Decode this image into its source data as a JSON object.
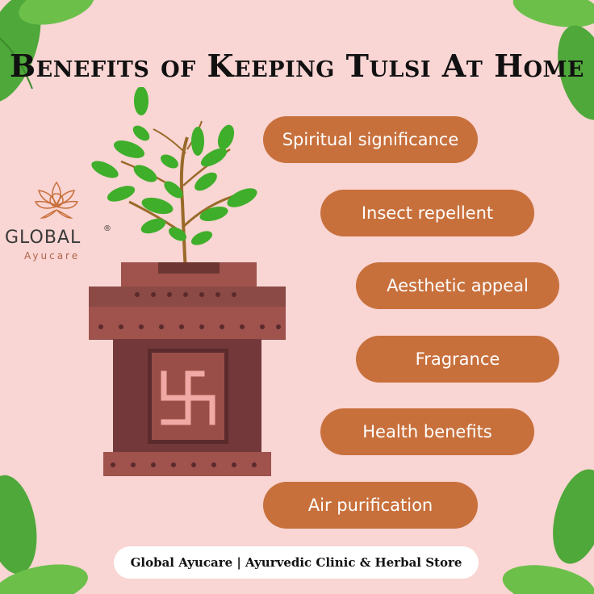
{
  "title": "Benefits of Keeping Tulsi At Home",
  "logo": {
    "name": "GLOBAL",
    "registered": "®",
    "tagline": "Ayucare"
  },
  "benefits": [
    "Spiritual significance",
    "Insect repellent",
    "Aesthetic appeal",
    "Fragrance",
    "Health benefits",
    "Air purification"
  ],
  "footer": "Global Ayucare | Ayurvedic Clinic & Herbal Store",
  "colors": {
    "background": "#f9d5d3",
    "pill": "#c8703c",
    "planter": "#8b4a45",
    "leaf": "#3fae2a"
  },
  "icons": [
    "tulsi-plant-icon",
    "planter-pot-icon",
    "swastika-icon",
    "lotus-logo-icon",
    "corner-leaf-icon"
  ]
}
